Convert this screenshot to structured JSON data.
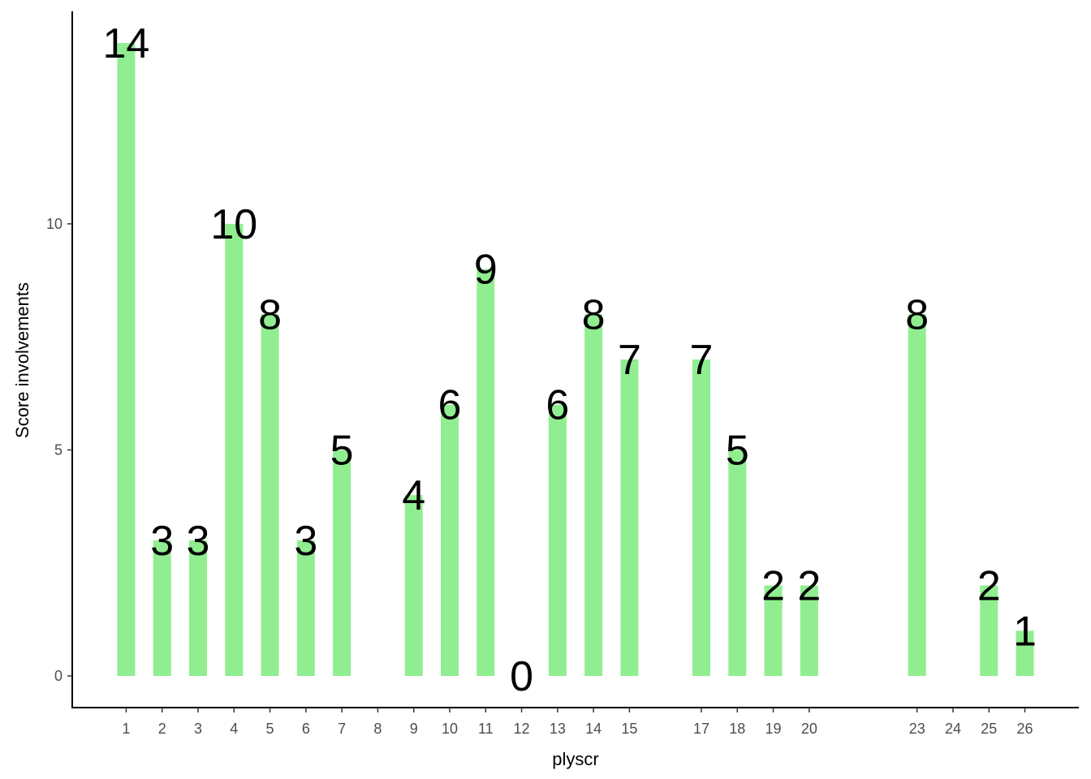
{
  "chart_data": {
    "type": "bar",
    "title": "",
    "xlabel": "plyscr",
    "ylabel": "Score involvements",
    "x": [
      1,
      2,
      3,
      4,
      5,
      6,
      7,
      8,
      9,
      10,
      11,
      12,
      13,
      14,
      15,
      17,
      18,
      19,
      20,
      23,
      24,
      25,
      26
    ],
    "values": [
      14,
      3,
      3,
      10,
      8,
      3,
      5,
      null,
      4,
      6,
      9,
      0,
      6,
      8,
      7,
      7,
      5,
      2,
      2,
      8,
      null,
      2,
      1
    ],
    "data_labels": [
      "14",
      "3",
      "3",
      "10",
      "8",
      "3",
      "5",
      "",
      "4",
      "6",
      "9",
      "0",
      "6",
      "8",
      "7",
      "7",
      "5",
      "2",
      "2",
      "8",
      "",
      "2",
      "1"
    ],
    "x_tick_labels": [
      "1",
      "2",
      "3",
      "4",
      "5",
      "6",
      "7",
      "8",
      "9",
      "10",
      "11",
      "12",
      "13",
      "14",
      "15",
      "17",
      "18",
      "19",
      "20",
      "23",
      "24",
      "25",
      "26"
    ],
    "y_ticks": [
      0,
      5,
      10
    ],
    "y_tick_labels": [
      "0",
      "5",
      "10"
    ],
    "xlim": [
      -0.5,
      27.5
    ],
    "ylim": [
      -0.7,
      14.7
    ],
    "grid": false,
    "legend": "none",
    "colors": {
      "bar": "#90ee90",
      "axis": "#000000",
      "tick_text": "#4d4d4d",
      "label_text": "#000000"
    }
  }
}
